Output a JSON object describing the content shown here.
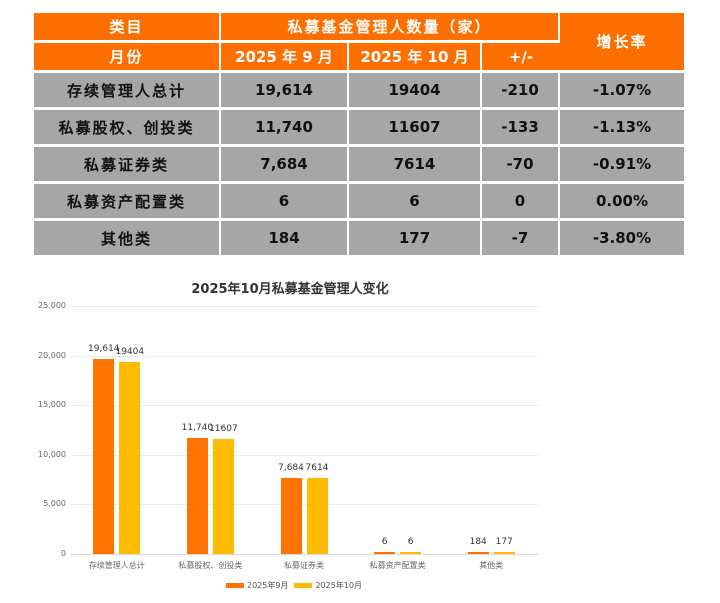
{
  "table": {
    "header_row1": {
      "category": "类目",
      "group": "私募基金管理人数量（家）",
      "growth": "增长率"
    },
    "header_row2": {
      "month": "月份",
      "sep": "2025 年 9 月",
      "oct": "2025 年 10 月",
      "diff": "+/-"
    },
    "rows": [
      {
        "name": "存续管理人总计",
        "sep": "19,614",
        "oct": "19404",
        "diff": "-210",
        "rate": "-1.07%"
      },
      {
        "name": "私募股权、创投类",
        "sep": "11,740",
        "oct": "11607",
        "diff": "-133",
        "rate": "-1.13%"
      },
      {
        "name": "私募证券类",
        "sep": "7,684",
        "oct": "7614",
        "diff": "-70",
        "rate": "-0.91%"
      },
      {
        "name": "私募资产配置类",
        "sep": "6",
        "oct": "6",
        "diff": "0",
        "rate": "0.00%"
      },
      {
        "name": "其他类",
        "sep": "184",
        "oct": "177",
        "diff": "-7",
        "rate": "-3.80%"
      }
    ],
    "colors": {
      "header": "#ff6f00",
      "body": "#a6a6a6"
    }
  },
  "chart_data": {
    "type": "bar",
    "title": "2025年10月私募基金管理人变化",
    "categories": [
      "存续管理人总计",
      "私募股权、创投类",
      "私募证券类",
      "私募资产配置类",
      "其他类"
    ],
    "series": [
      {
        "name": "2025年9月",
        "values": [
          19614,
          11740,
          7684,
          6,
          184
        ],
        "labels": [
          "19,614",
          "11,740",
          "7,684",
          "6",
          "184"
        ],
        "color": "#ff7300"
      },
      {
        "name": "2025年10月",
        "values": [
          19404,
          11607,
          7614,
          6,
          177
        ],
        "labels": [
          "19404",
          "11607",
          "7614",
          "6",
          "177"
        ],
        "color": "#ffbb00"
      }
    ],
    "yticks": [
      "0",
      "5,000",
      "10,000",
      "15,000",
      "20,000",
      "25,000"
    ],
    "ylim": [
      0,
      25000
    ],
    "xlabel": "",
    "ylabel": "",
    "grid": true,
    "legend_position": "bottom"
  }
}
